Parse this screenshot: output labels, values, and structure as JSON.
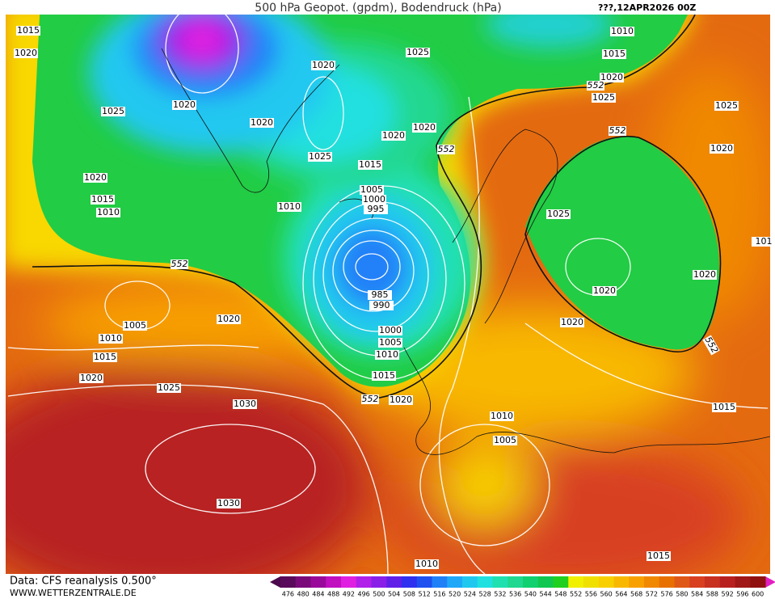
{
  "header": {
    "title": "500 hPa Geopot. (gpdm), Bodendruck (hPa)",
    "date": "???,12APR2026 00Z"
  },
  "footer": {
    "source": "Data: CFS reanalysis 0.500°",
    "site": "WWW.WETTERZENTRALE.DE"
  },
  "map": {
    "isobar_labels": [
      1015,
      1020,
      1020,
      1025,
      1010,
      1015,
      1020,
      1025,
      1020,
      1025,
      1020,
      1020,
      1020,
      1025,
      1015,
      1020,
      1015,
      1010,
      1005,
      1000,
      995,
      1010,
      1025,
      1025,
      1020,
      1020,
      1020,
      1020,
      985,
      990,
      1000,
      1005,
      1010,
      1015,
      1020,
      1005,
      1010,
      1015,
      1020,
      1025,
      1020,
      1030,
      1030,
      1010,
      1005,
      1015,
      1010,
      1015,
      101
    ],
    "height_labels": [
      552,
      552,
      552,
      552,
      552,
      552
    ]
  },
  "legend": {
    "ticks": [
      476,
      480,
      484,
      488,
      492,
      496,
      500,
      504,
      508,
      512,
      516,
      520,
      524,
      528,
      532,
      536,
      540,
      544,
      548,
      552,
      556,
      560,
      564,
      568,
      572,
      576,
      580,
      584,
      588,
      592,
      596,
      600
    ],
    "colors": [
      "#5a0a5a",
      "#7a0a7a",
      "#9a0a9a",
      "#c010c0",
      "#e020e0",
      "#b020e8",
      "#8a20e8",
      "#6020e8",
      "#3030f0",
      "#2050f0",
      "#2080f8",
      "#20a8f8",
      "#20c8f0",
      "#20e0e0",
      "#20e0b0",
      "#20d890",
      "#10d070",
      "#10c850",
      "#20d020",
      "#f0f000",
      "#f0e000",
      "#f8d000",
      "#f8b800",
      "#f8a000",
      "#f08800",
      "#e87000",
      "#e05818",
      "#d84020",
      "#c83020",
      "#b82020",
      "#a01818",
      "#901010"
    ]
  }
}
